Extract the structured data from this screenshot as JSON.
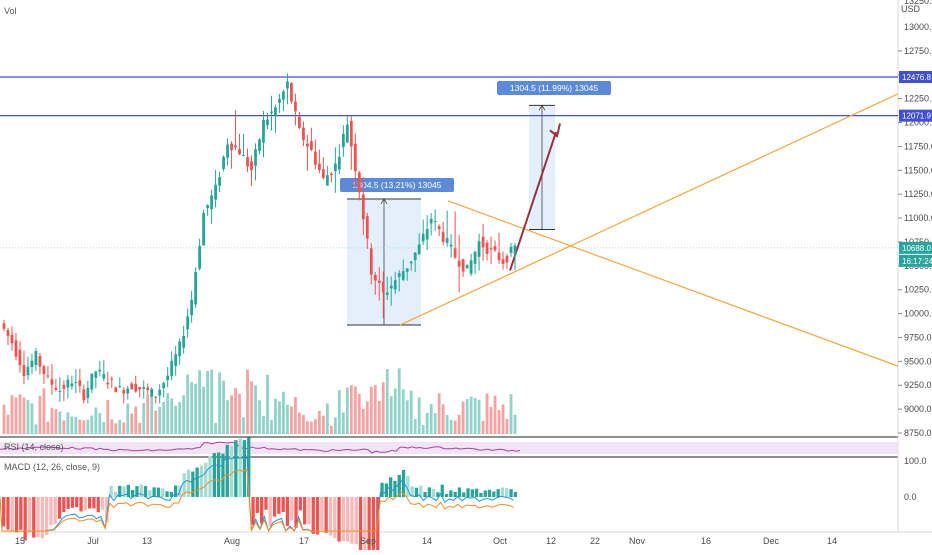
{
  "header": {
    "volume_label": "Vol",
    "currency": "USD"
  },
  "colors": {
    "up": "#26a69a",
    "down": "#ef5350",
    "up_volume": "#8fd3cb",
    "down_volume": "#f5a3a1",
    "resistance_line": "#3f4fd8",
    "triangle_lines": "#f7a440",
    "measure_fill": "#dbe9fb",
    "measure_label_bg": "#5b8ad8",
    "arrow": "#9c2f3c",
    "price_label": "#26a69a",
    "rsi_line": "#b03fa4",
    "rsi_band": "#f0e4f5",
    "macd_line": "#2a93d5",
    "signal_line": "#ff8c1a"
  },
  "price_axis": {
    "ticks": [
      "12750.0",
      "12500.0",
      "12250.0",
      "12000.0",
      "11750.0",
      "11500.0",
      "11250.0",
      "11000.0",
      "10750.0",
      "10500.0",
      "10250.0",
      "10000.0",
      "9750.0",
      "9500.0",
      "9250.0",
      "9000.0",
      "8750.0"
    ],
    "top_partial": "13250.0",
    "top_label": "13000.0",
    "range": [
      8700,
      13350
    ]
  },
  "horizontal_levels": [
    {
      "value": 12476.8,
      "label": "12476.8"
    },
    {
      "value": 12071.9,
      "label": "12071.9"
    }
  ],
  "current_price": {
    "value": 10688.0,
    "label": "10688.0",
    "countdown": "16:17:24"
  },
  "measurements": [
    {
      "label": "1304.5 (13.21%) 13045"
    },
    {
      "label": "1304.5 (11.99%) 13045"
    }
  ],
  "time_axis": {
    "labels": [
      "15",
      "Jul",
      "13",
      "Aug",
      "17",
      "Sep",
      "14",
      "Oct",
      "12",
      "22",
      "Nov",
      "16",
      "Dec",
      "14"
    ]
  },
  "rsi": {
    "label": "RSI (14, close)"
  },
  "macd": {
    "label": "MACD (12, 26, close, 9)",
    "ticks": [
      "100.0",
      "0.0"
    ]
  },
  "chart_data": {
    "type": "candlestick",
    "symbol_note": "",
    "ylim": [
      8700,
      13350
    ],
    "series": [
      {
        "name": "",
        "ohlc_sample": [
          [
            9900,
            10150,
            9650,
            9700
          ],
          [
            9700,
            9800,
            9300,
            9400
          ],
          [
            9400,
            9600,
            9200,
            9550
          ],
          [
            9550,
            9700,
            9250,
            9300
          ],
          [
            9300,
            9450,
            9100,
            9200
          ],
          [
            9200,
            9350,
            9000,
            9300
          ],
          [
            9300,
            9400,
            9100,
            9150
          ],
          [
            9150,
            9450,
            9100,
            9400
          ],
          [
            9400,
            9500,
            9250,
            9300
          ],
          [
            9300,
            9350,
            9150,
            9200
          ],
          [
            9200,
            9300,
            9050,
            9250
          ],
          [
            9250,
            9400,
            9150,
            9200
          ],
          [
            9200,
            9300,
            9100,
            9150
          ],
          [
            9150,
            9400,
            9100,
            9350
          ],
          [
            9350,
            9700,
            9300,
            9650
          ],
          [
            9650,
            10200,
            9600,
            10150
          ],
          [
            10150,
            11100,
            10100,
            11050
          ],
          [
            11050,
            11500,
            10900,
            11300
          ],
          [
            11300,
            11900,
            11200,
            11800
          ],
          [
            11800,
            12150,
            11500,
            11700
          ],
          [
            11700,
            11900,
            11300,
            11500
          ],
          [
            11500,
            12100,
            11400,
            12000
          ],
          [
            12000,
            12300,
            11800,
            12150
          ],
          [
            12150,
            12500,
            11900,
            12400
          ],
          [
            12400,
            12450,
            11800,
            11900
          ],
          [
            11900,
            12100,
            11500,
            11700
          ],
          [
            11700,
            11900,
            11300,
            11400
          ],
          [
            11400,
            11700,
            11200,
            11550
          ],
          [
            11550,
            12100,
            11500,
            12000
          ],
          [
            12000,
            12100,
            11100,
            11300
          ],
          [
            11300,
            11600,
            10200,
            10450
          ],
          [
            10450,
            10700,
            9900,
            10200
          ],
          [
            10200,
            10500,
            10050,
            10350
          ],
          [
            10350,
            10600,
            10200,
            10500
          ],
          [
            10500,
            10800,
            10400,
            10700
          ],
          [
            10700,
            11100,
            10600,
            11000
          ],
          [
            11000,
            11150,
            10700,
            10800
          ],
          [
            10800,
            11200,
            10500,
            10600
          ],
          [
            10600,
            10900,
            10200,
            10450
          ],
          [
            10450,
            10800,
            10300,
            10750
          ],
          [
            10750,
            10900,
            10500,
            10650
          ],
          [
            10650,
            10850,
            10500,
            10550
          ],
          [
            10550,
            10700,
            10400,
            10688
          ]
        ]
      }
    ],
    "annotations": {
      "resistance": [
        12476.8,
        12071.9
      ],
      "measure_1": "1304.5 (13.21%) 13045",
      "measure_2": "1304.5 (11.99%) 13045"
    }
  }
}
